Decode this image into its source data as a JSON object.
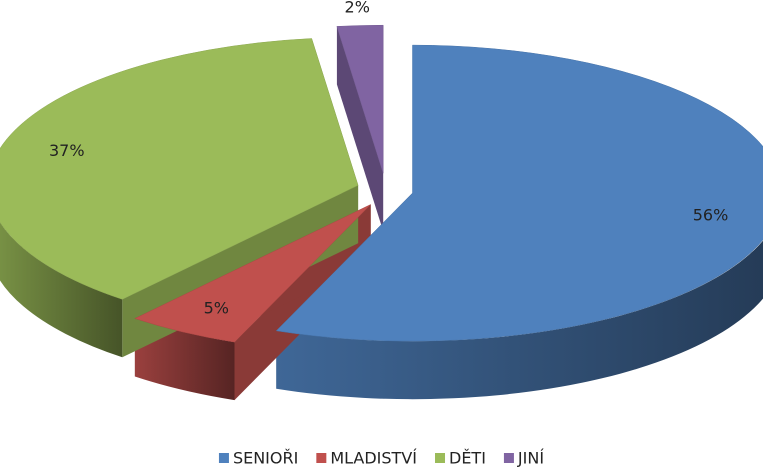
{
  "chart_data": {
    "type": "pie",
    "categories": [
      "SENIOŘI",
      "MLADISTVÍ",
      "DĚTI",
      "JINÍ"
    ],
    "values": [
      56,
      5,
      37,
      2
    ],
    "value_labels": [
      "56%",
      "5%",
      "37%",
      "2%"
    ],
    "colors": [
      "#4f81bd",
      "#c0504d",
      "#9bbb59",
      "#8064a2"
    ],
    "legend": "bottom"
  }
}
